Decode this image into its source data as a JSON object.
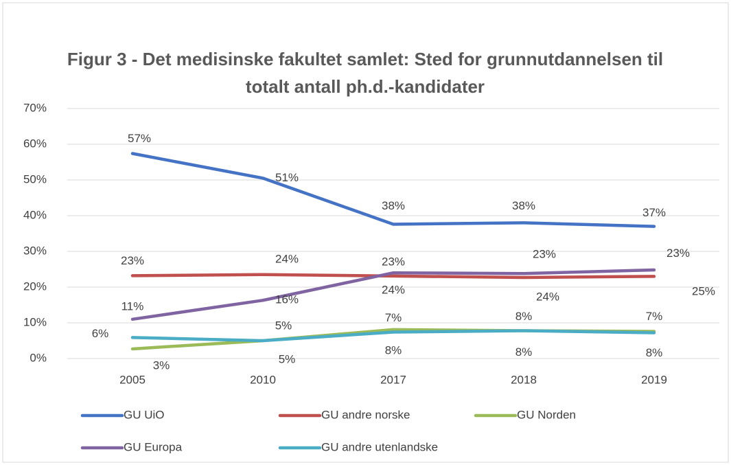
{
  "chart_data": {
    "type": "line",
    "title": "Figur 3 - Det medisinske fakultet samlet: Sted for grunnutdannelsen til totalt antall ph.d.-kandidater",
    "categories": [
      "2005",
      "2010",
      "2017",
      "2018",
      "2019"
    ],
    "ylim": [
      0,
      70
    ],
    "yticks": [
      {
        "value": 0,
        "label": "0%"
      },
      {
        "value": 10,
        "label": "10%"
      },
      {
        "value": 20,
        "label": "20%"
      },
      {
        "value": 30,
        "label": "30%"
      },
      {
        "value": 40,
        "label": "40%"
      },
      {
        "value": 50,
        "label": "50%"
      },
      {
        "value": 60,
        "label": "60%"
      },
      {
        "value": 70,
        "label": "70%"
      }
    ],
    "grid": true,
    "series": [
      {
        "name": "GU UiO",
        "color": "#4472c4",
        "values": [
          57.4,
          50.5,
          37.6,
          38.0,
          37.0
        ],
        "value_labels": [
          "57%",
          "51%",
          "38%",
          "38%",
          "37%"
        ]
      },
      {
        "name": "GU andre norske",
        "color": "#c0504d",
        "values": [
          23.2,
          23.5,
          23.1,
          22.7,
          23.0
        ],
        "value_labels": [
          "23%",
          "24%",
          "23%",
          "23%",
          "23%"
        ]
      },
      {
        "name": "GU Norden",
        "color": "#9bbb59",
        "values": [
          2.7,
          5.0,
          8.1,
          7.8,
          7.6
        ],
        "value_labels": [
          "3%",
          "5%",
          "8%",
          "8%",
          "8%"
        ]
      },
      {
        "name": "GU Europa",
        "color": "#8064a2",
        "values": [
          11.0,
          16.3,
          24.0,
          23.8,
          24.8
        ],
        "value_labels": [
          "11%",
          "16%",
          "24%",
          "24%",
          "25%"
        ]
      },
      {
        "name": "GU andre utenlandske",
        "color": "#4bacc6",
        "values": [
          5.9,
          5.0,
          7.4,
          7.8,
          7.2
        ],
        "value_labels": [
          "6%",
          "5%",
          "7%",
          "8%",
          "7%"
        ]
      }
    ]
  }
}
